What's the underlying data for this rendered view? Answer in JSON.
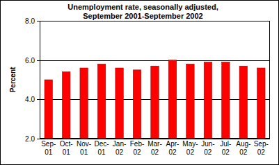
{
  "chart_data": {
    "type": "bar",
    "title": [
      "Unemployment rate, seasonally adjusted,",
      "September 2001-September 2002"
    ],
    "y_label": "Percent",
    "categories": [
      "Sep-01",
      "Oct-01",
      "Nov-01",
      "Dec-01",
      "Jan-02",
      "Feb-02",
      "Mar-02",
      "Apr-02",
      "May-02",
      "Jun-02",
      "Jul-02",
      "Aug-02",
      "Sep-02"
    ],
    "values": [
      5.0,
      5.4,
      5.6,
      5.8,
      5.6,
      5.5,
      5.7,
      6.0,
      5.8,
      5.9,
      5.9,
      5.7,
      5.6
    ],
    "color": "#ff0000",
    "ylim": [
      2,
      8
    ],
    "yticks": [
      {
        "value": 2,
        "label": "2.0"
      },
      {
        "value": 4,
        "label": "4.0"
      },
      {
        "value": 6,
        "label": "6.0"
      },
      {
        "value": 8,
        "label": "8.0"
      }
    ],
    "grid": true
  }
}
